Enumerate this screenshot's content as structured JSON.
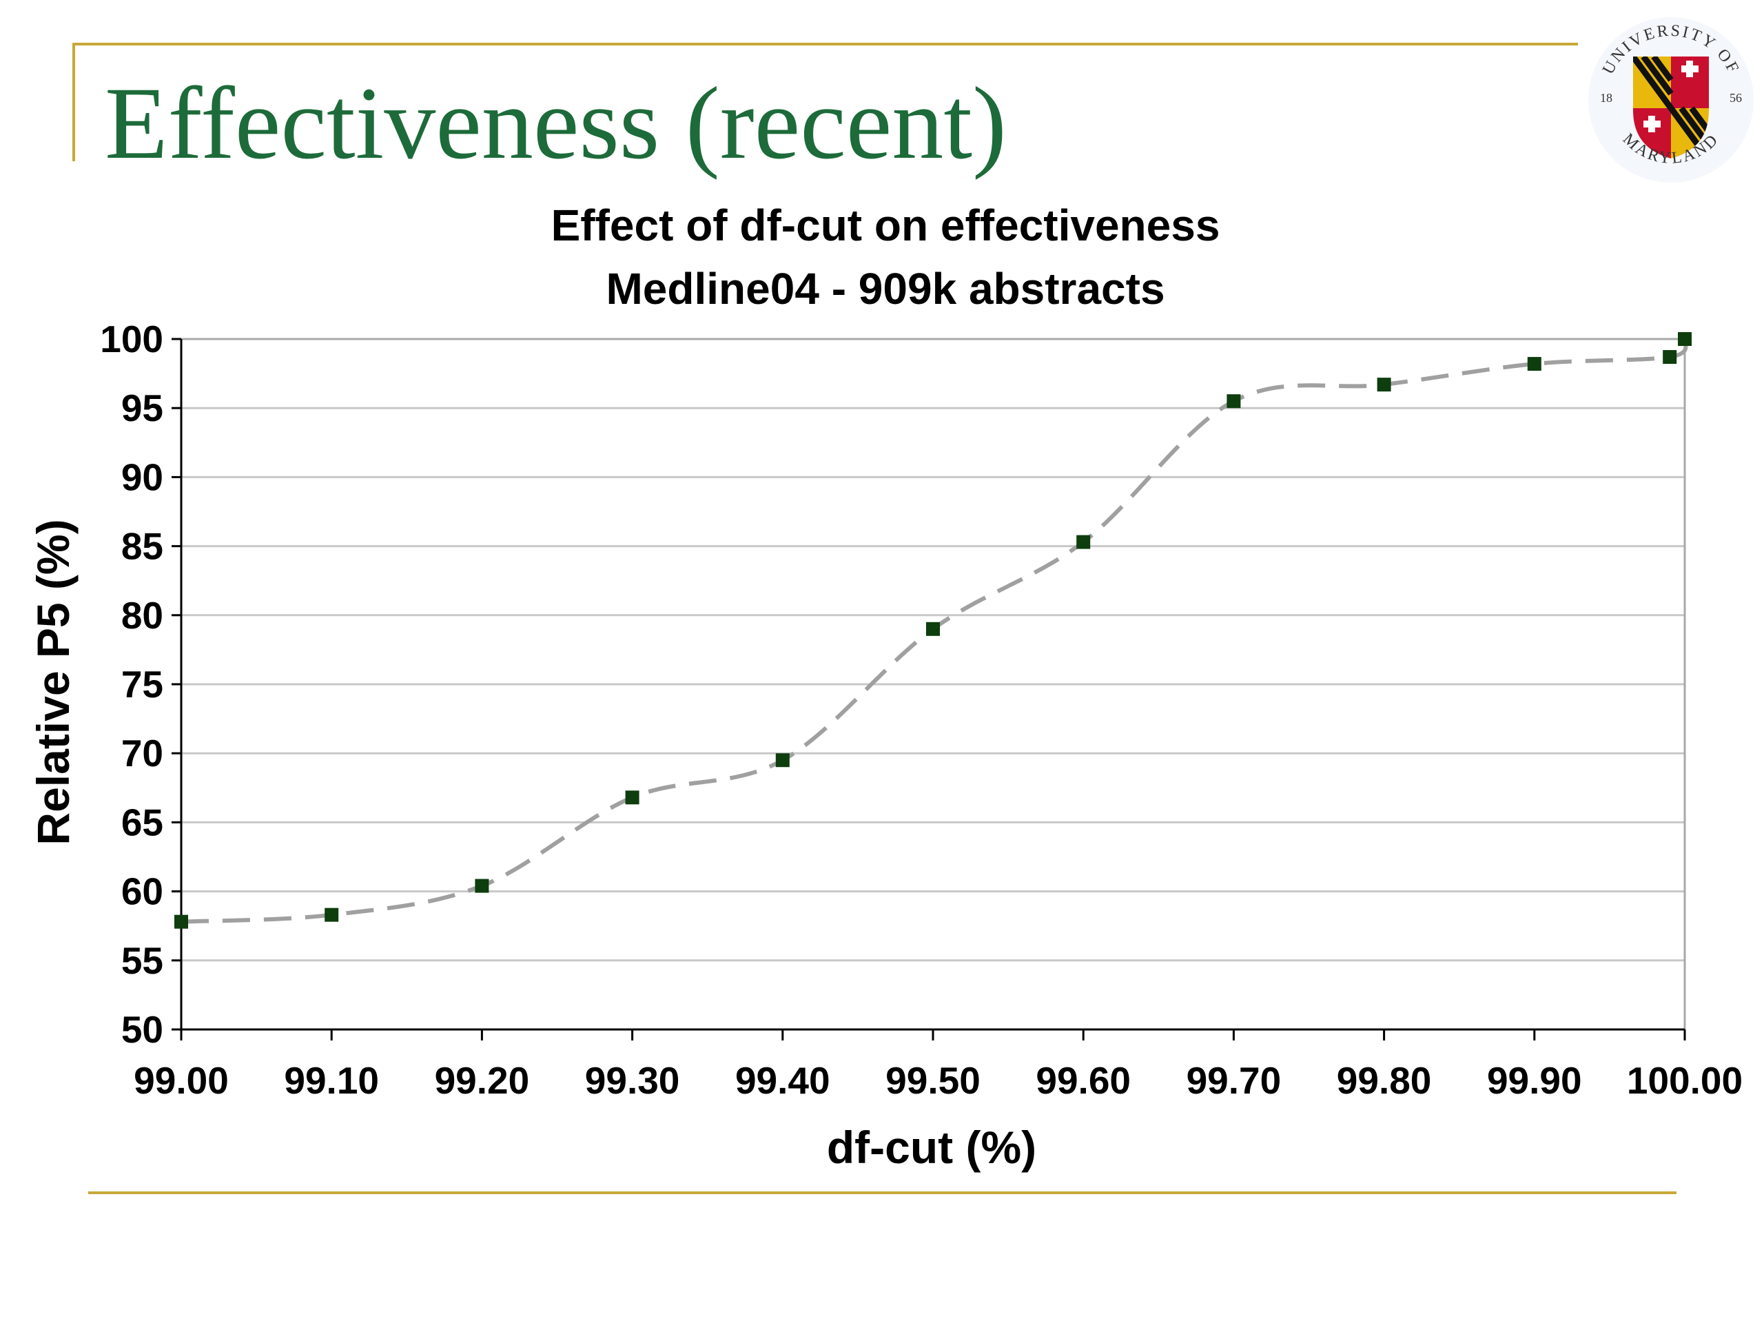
{
  "slide": {
    "title": "Effectiveness (recent)",
    "logo": {
      "top_text": "UNIVERSITY OF",
      "bottom_text": "MARYLAND",
      "year_left": "18",
      "year_right": "56"
    }
  },
  "colors": {
    "title_green": "#1d6b3a",
    "frame_gold": "#c8a838",
    "line_gray": "#a0a0a0",
    "marker_green": "#0e3d0e",
    "grid_gray": "#c8c8c8"
  },
  "chart_data": {
    "type": "line",
    "title_line1": "Effect of df-cut on effectiveness",
    "title_line2": "Medline04 - 909k abstracts",
    "xlabel": "df-cut (%)",
    "ylabel": "Relative P5 (%)",
    "x_ticks": [
      "99.00",
      "99.10",
      "99.20",
      "99.30",
      "99.40",
      "99.50",
      "99.60",
      "99.70",
      "99.80",
      "99.90",
      "100.00"
    ],
    "y_ticks": [
      "50",
      "55",
      "60",
      "65",
      "70",
      "75",
      "80",
      "85",
      "90",
      "95",
      "100"
    ],
    "xlim": [
      99.0,
      100.0
    ],
    "ylim": [
      50,
      100
    ],
    "grid": true,
    "line_style": "dashed",
    "marker": "square",
    "series": [
      {
        "x": [
          99.0,
          99.1,
          99.2,
          99.3,
          99.4,
          99.5,
          99.6,
          99.7,
          99.8,
          99.9,
          99.99,
          100.0
        ],
        "values": [
          57.8,
          58.3,
          60.4,
          66.8,
          69.5,
          79.0,
          85.3,
          95.5,
          96.7,
          98.2,
          98.7,
          100.0
        ]
      }
    ]
  }
}
